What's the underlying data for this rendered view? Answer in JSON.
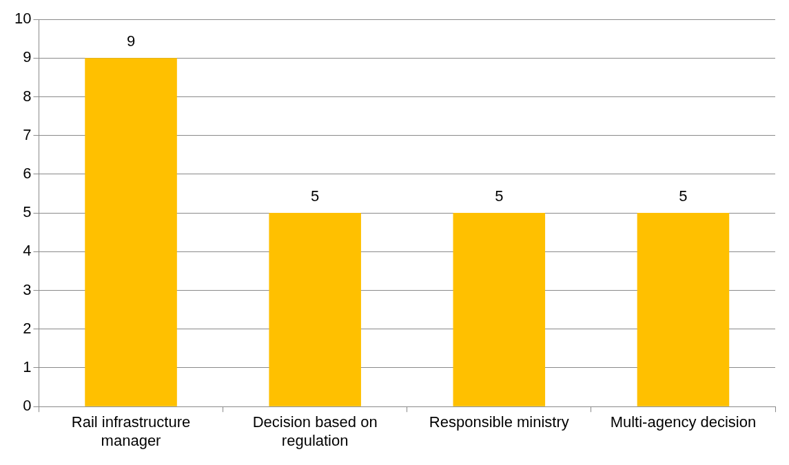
{
  "chart_data": {
    "type": "bar",
    "categories": [
      "Rail infrastructure manager",
      "Decision based on regulation",
      "Responsible ministry",
      "Multi-agency decision"
    ],
    "values": [
      9,
      5,
      5,
      5
    ],
    "color": "#ffc000",
    "ylim": [
      0,
      10
    ],
    "yticks": [
      0,
      1,
      2,
      3,
      4,
      5,
      6,
      7,
      8,
      9,
      10
    ],
    "grid": "y",
    "data_labels": true,
    "legend": false
  }
}
